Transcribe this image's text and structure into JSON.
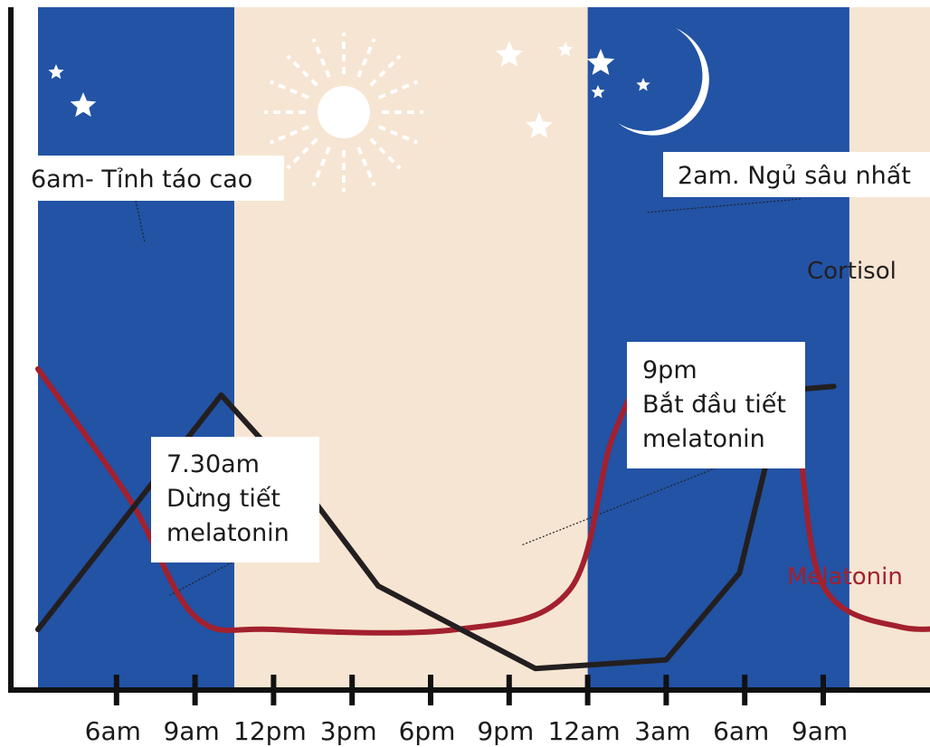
{
  "colors": {
    "night": "#2253a5",
    "day": "#f6e5d2",
    "melatonin": "#a3202e",
    "cortisol": "#231f20",
    "axis": "#111111",
    "box": "#ffffff",
    "icon": "#ffffff"
  },
  "icons": [
    "star-icon",
    "sun-icon",
    "crescent-moon-icon"
  ],
  "chart_data": {
    "type": "line",
    "title": "",
    "xlabel": "",
    "ylabel": "",
    "grid": false,
    "x_ticks": [
      "6am",
      "9am",
      "12pm",
      "3pm",
      "6pm",
      "9pm",
      "12am",
      "3am",
      "6am",
      "9am"
    ],
    "x_range": [
      0,
      36
    ],
    "y_range": [
      0,
      10
    ],
    "background_bands": [
      {
        "kind": "night",
        "from": 0,
        "to": 7.5
      },
      {
        "kind": "day",
        "from": 7.5,
        "to": 21
      },
      {
        "kind": "night",
        "from": 21,
        "to": 31
      },
      {
        "kind": "day",
        "from": 31,
        "to": 36
      }
    ],
    "series": [
      {
        "name": "Cortisol",
        "color": "#231f20",
        "shape": "linear",
        "points": [
          [
            0,
            1.0
          ],
          [
            7,
            6.4
          ],
          [
            10,
            4.4
          ],
          [
            13,
            2.0
          ],
          [
            19,
            0.1
          ],
          [
            24,
            0.3
          ],
          [
            26.8,
            2.3
          ],
          [
            28.5,
            6.5
          ],
          [
            30.4,
            6.6
          ]
        ]
      },
      {
        "name": "Melatonin",
        "color": "#a3202e",
        "shape": "smooth",
        "points": [
          [
            0,
            7.0
          ],
          [
            3.5,
            4.0
          ],
          [
            6,
            1.3
          ],
          [
            9,
            1.0
          ],
          [
            16,
            1.0
          ],
          [
            20.3,
            1.9
          ],
          [
            22,
            5.5
          ],
          [
            24,
            7.3
          ],
          [
            28,
            7.3
          ],
          [
            29,
            5.5
          ],
          [
            30,
            2.0
          ],
          [
            33,
            1.05
          ],
          [
            36,
            1.15
          ]
        ]
      }
    ],
    "annotations": [
      {
        "text": [
          "6am- Tỉnh táo cao"
        ],
        "x": 7,
        "y": 6.4
      },
      {
        "text": [
          "7.30am",
          "Dừng tiết",
          "melatonin"
        ],
        "x": 7.5,
        "y": 1.3
      },
      {
        "text": [
          "9pm",
          "Bắt đầu tiết",
          "melatonin"
        ],
        "x": 20.3,
        "y": 2.1
      },
      {
        "text": [
          "2am. Ngủ sâu nhất"
        ],
        "x": 26,
        "y": 7.3
      }
    ]
  }
}
